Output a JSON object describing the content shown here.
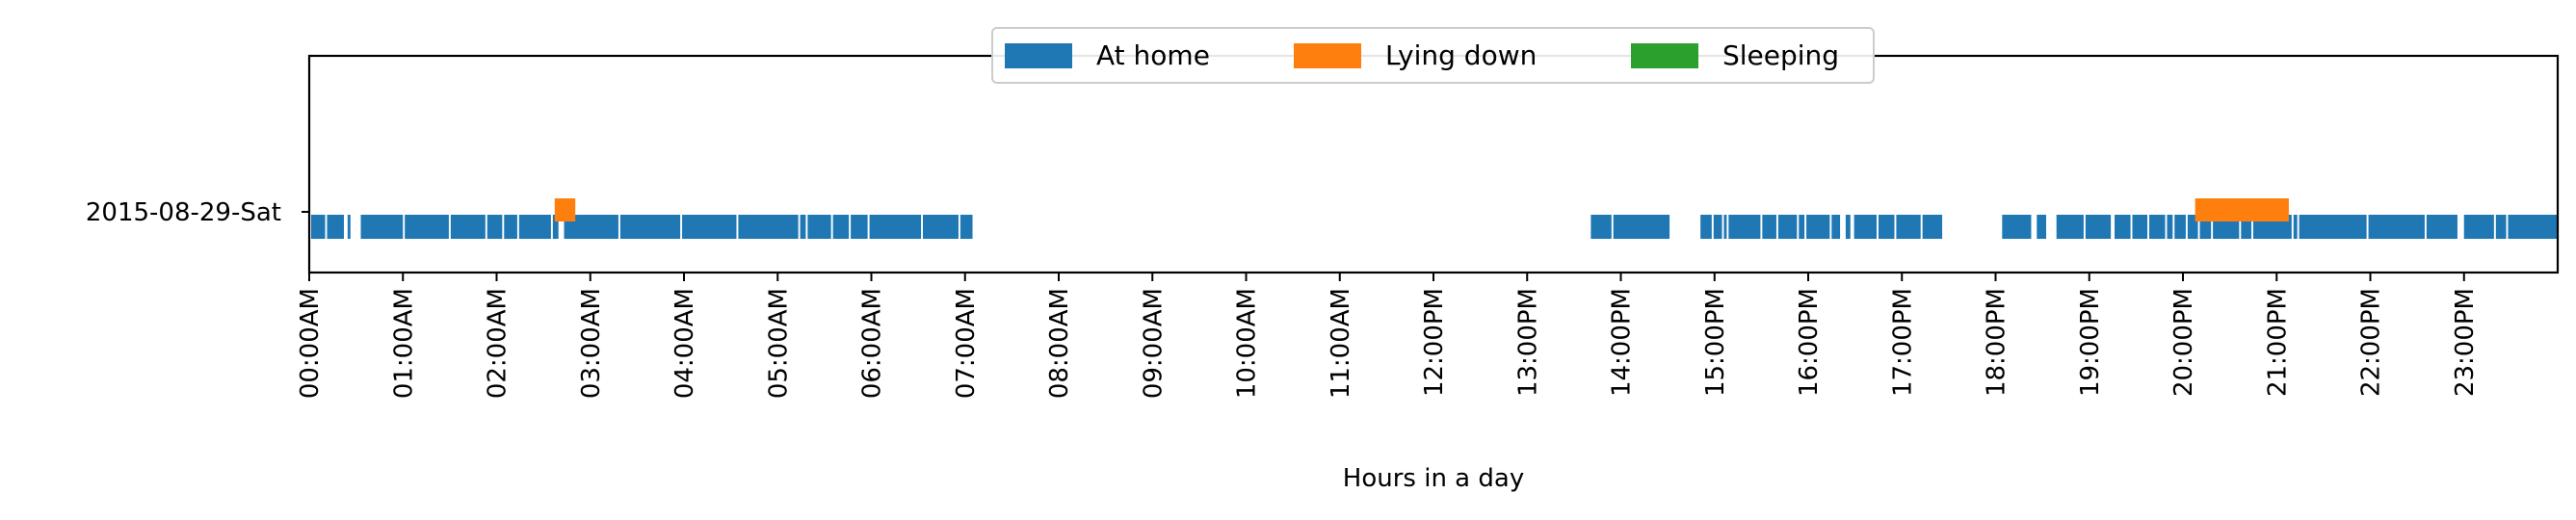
{
  "chart_data": {
    "type": "timeline",
    "xlabel": "Hours in a day",
    "xlim": [
      0,
      24
    ],
    "row_label": "2015-08-29-Sat",
    "x_tick_labels": [
      "00:00AM",
      "01:00AM",
      "02:00AM",
      "03:00AM",
      "04:00AM",
      "05:00AM",
      "06:00AM",
      "07:00AM",
      "08:00AM",
      "09:00AM",
      "10:00AM",
      "11:00AM",
      "12:00PM",
      "13:00PM",
      "14:00PM",
      "15:00PM",
      "16:00PM",
      "17:00PM",
      "18:00PM",
      "19:00PM",
      "20:00PM",
      "21:00PM",
      "22:00PM",
      "23:00PM"
    ],
    "legend_position": "upper center",
    "series": [
      {
        "name": "At home",
        "color": "#1f77b4",
        "intervals": [
          [
            0.02,
            0.17
          ],
          [
            0.19,
            0.37
          ],
          [
            0.41,
            0.44
          ],
          [
            0.55,
            1.0
          ],
          [
            1.02,
            1.49
          ],
          [
            1.51,
            1.88
          ],
          [
            1.9,
            2.06
          ],
          [
            2.08,
            2.22
          ],
          [
            2.24,
            2.58
          ],
          [
            2.6,
            2.66
          ],
          [
            2.72,
            3.3
          ],
          [
            3.32,
            3.96
          ],
          [
            3.98,
            4.56
          ],
          [
            4.58,
            5.22
          ],
          [
            5.24,
            5.3
          ],
          [
            5.32,
            5.57
          ],
          [
            5.59,
            5.76
          ],
          [
            5.78,
            5.96
          ],
          [
            5.98,
            6.53
          ],
          [
            6.55,
            6.93
          ],
          [
            6.95,
            7.08
          ],
          [
            13.68,
            13.9
          ],
          [
            13.92,
            14.52
          ],
          [
            14.85,
            14.97
          ],
          [
            14.99,
            15.08
          ],
          [
            15.1,
            15.13
          ],
          [
            15.15,
            15.49
          ],
          [
            15.51,
            15.66
          ],
          [
            15.68,
            15.88
          ],
          [
            15.9,
            15.96
          ],
          [
            15.98,
            16.23
          ],
          [
            16.25,
            16.34
          ],
          [
            16.4,
            16.45
          ],
          [
            16.49,
            16.73
          ],
          [
            16.75,
            16.92
          ],
          [
            16.94,
            17.2
          ],
          [
            17.22,
            17.43
          ],
          [
            18.07,
            18.38
          ],
          [
            18.44,
            18.54
          ],
          [
            18.65,
            18.94
          ],
          [
            18.96,
            19.23
          ],
          [
            19.27,
            19.44
          ],
          [
            19.46,
            19.62
          ],
          [
            19.64,
            19.81
          ],
          [
            19.83,
            19.89
          ],
          [
            19.91,
            20.03
          ],
          [
            20.05,
            20.16
          ],
          [
            20.18,
            20.3
          ],
          [
            20.32,
            20.6
          ],
          [
            20.62,
            20.73
          ],
          [
            20.75,
            21.16
          ],
          [
            21.18,
            21.22
          ],
          [
            21.24,
            21.96
          ],
          [
            21.98,
            22.58
          ],
          [
            22.6,
            22.93
          ],
          [
            23.0,
            23.32
          ],
          [
            23.34,
            23.45
          ],
          [
            23.47,
            24.0
          ]
        ]
      },
      {
        "name": "Lying down",
        "color": "#ff7f0e",
        "intervals": [
          [
            2.62,
            2.84
          ],
          [
            20.13,
            21.13
          ]
        ]
      },
      {
        "name": "Sleeping",
        "color": "#2ca02c",
        "intervals": []
      }
    ]
  }
}
